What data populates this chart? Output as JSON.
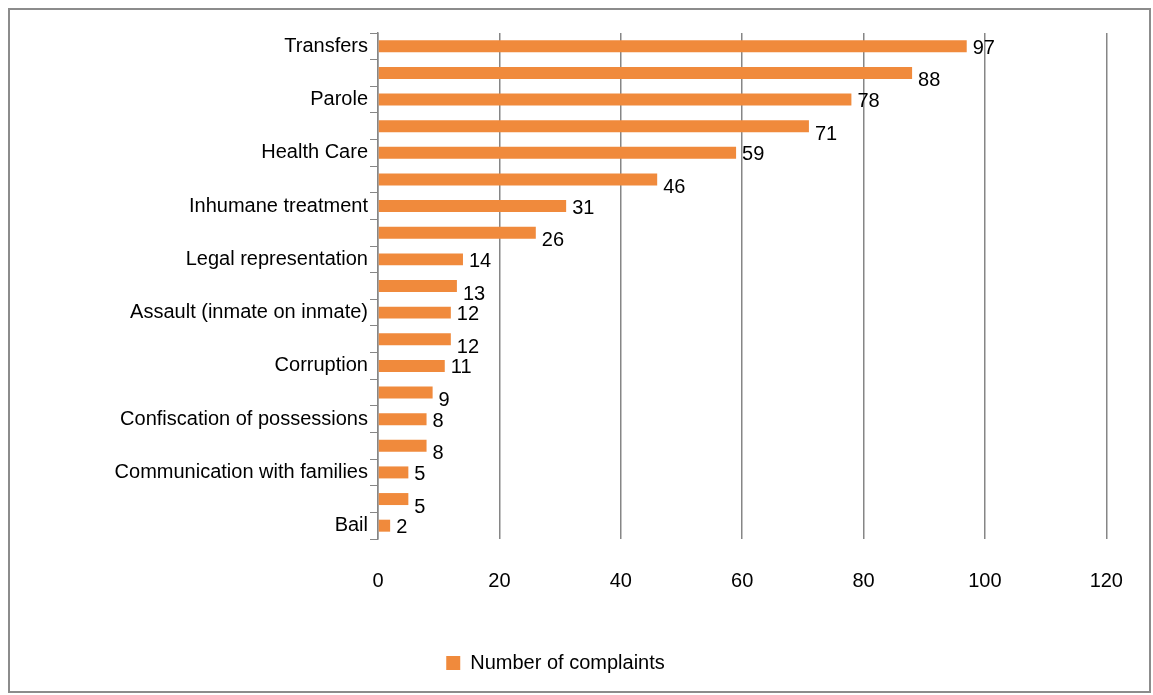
{
  "chart_data": {
    "type": "bar",
    "orientation": "horizontal",
    "categories": [
      "Transfers",
      null,
      "Parole",
      null,
      "Health Care",
      null,
      "Inhumane treatment",
      null,
      "Legal representation",
      null,
      "Assault (inmate on inmate)",
      null,
      "Corruption",
      null,
      "Confiscation of possessions",
      null,
      "Communication with families",
      null,
      "Bail"
    ],
    "series": [
      {
        "name": "Number of complaints",
        "color": "#f08a3c",
        "values": [
          97,
          88,
          78,
          71,
          59,
          46,
          31,
          26,
          14,
          13,
          12,
          12,
          11,
          9,
          8,
          8,
          5,
          5,
          2
        ]
      }
    ],
    "xlim": [
      0,
      120
    ],
    "xticks": [
      0,
      20,
      40,
      60,
      80,
      100,
      120
    ],
    "grid": "x",
    "legend": "bottom",
    "data_labels": true
  }
}
